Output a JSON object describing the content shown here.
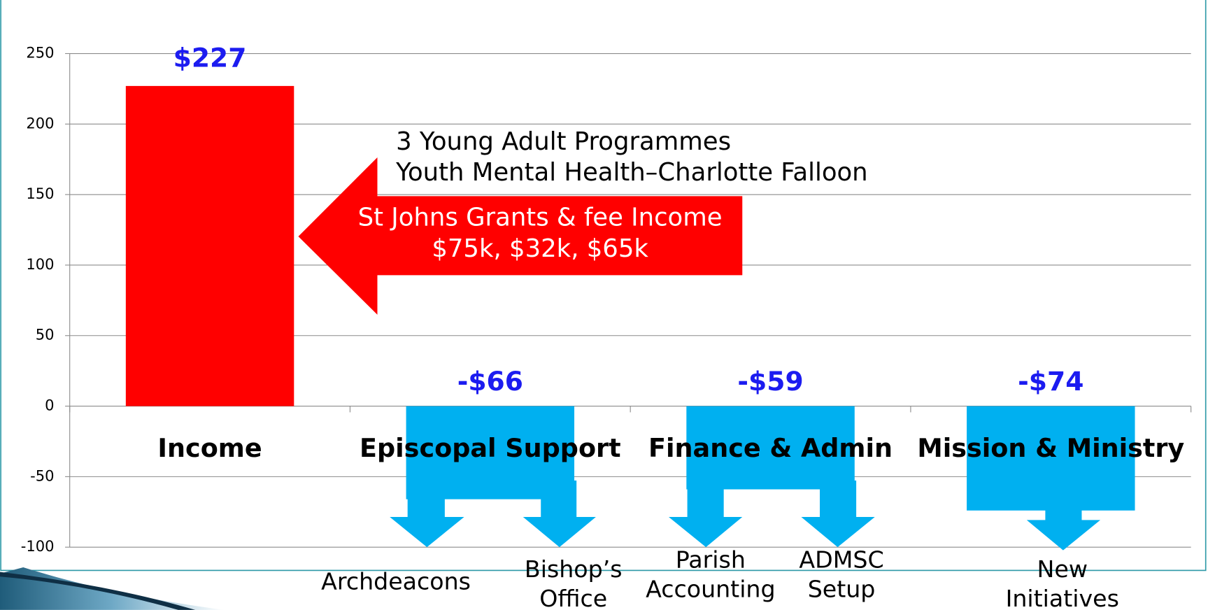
{
  "chart_data": {
    "type": "bar",
    "categories": [
      "Income",
      "Episcopal Support",
      "Finance & Admin",
      "Mission & Ministry"
    ],
    "values": [
      227,
      -66,
      -59,
      -74
    ],
    "value_labels": [
      "$227",
      "-$66",
      "-$59",
      "-$74"
    ],
    "colors": [
      "#ff0000",
      "#00b0f0",
      "#00b0f0",
      "#00b0f0"
    ],
    "value_label_color": "#1c1cf0",
    "ylim": [
      -100,
      250
    ],
    "yticks": [
      -100,
      -50,
      0,
      50,
      100,
      150,
      200,
      250
    ],
    "grid": true,
    "annotations": [
      "3 Young Adult Programmes",
      "Youth Mental Health–Charlotte Falloon"
    ],
    "callout": [
      "St Johns Grants & fee Income",
      "$75k, $32k, $65k"
    ],
    "sub_labels": [
      [
        "Archdeacons"
      ],
      [
        "Bishop’s",
        "Office"
      ],
      [
        "Parish",
        "Accounting"
      ],
      [
        "ADMSC",
        "Setup"
      ],
      [
        "New",
        "Initiatives"
      ]
    ]
  }
}
